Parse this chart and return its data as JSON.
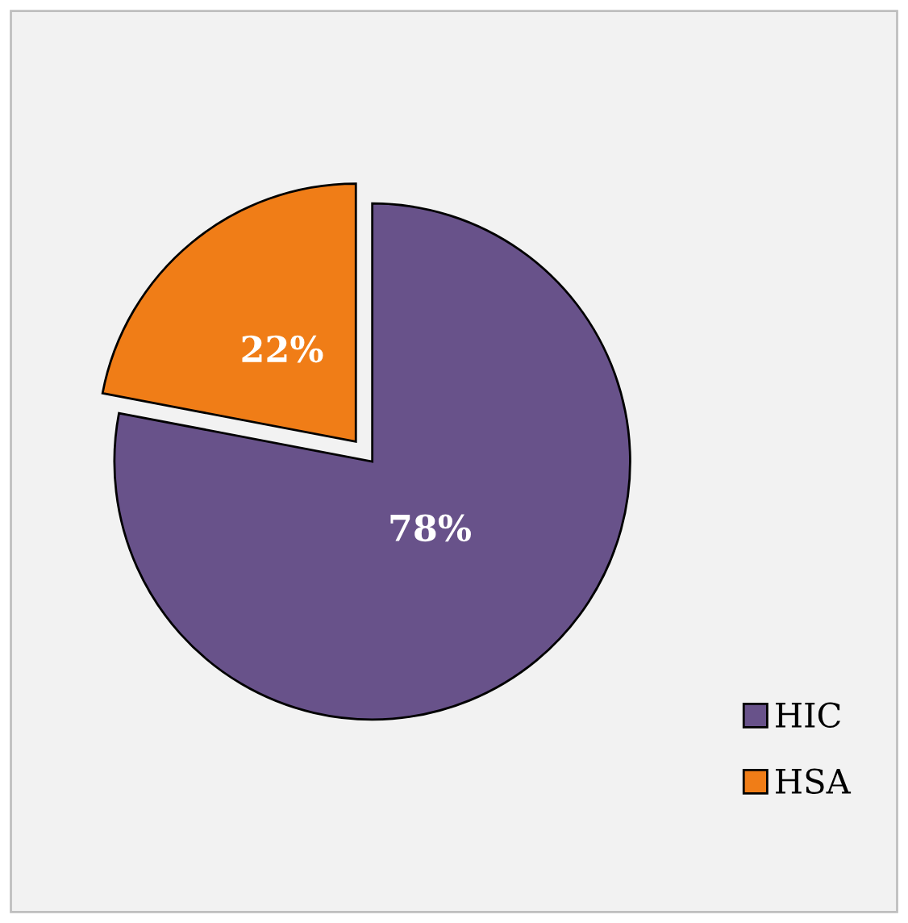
{
  "chart_data": {
    "type": "pie",
    "categories": [
      "HIC",
      "HSA"
    ],
    "values": [
      78,
      22
    ],
    "colors": [
      "#68528a",
      "#f07d17"
    ],
    "value_labels": [
      "78%",
      "22%"
    ],
    "legend": "bottom right"
  }
}
